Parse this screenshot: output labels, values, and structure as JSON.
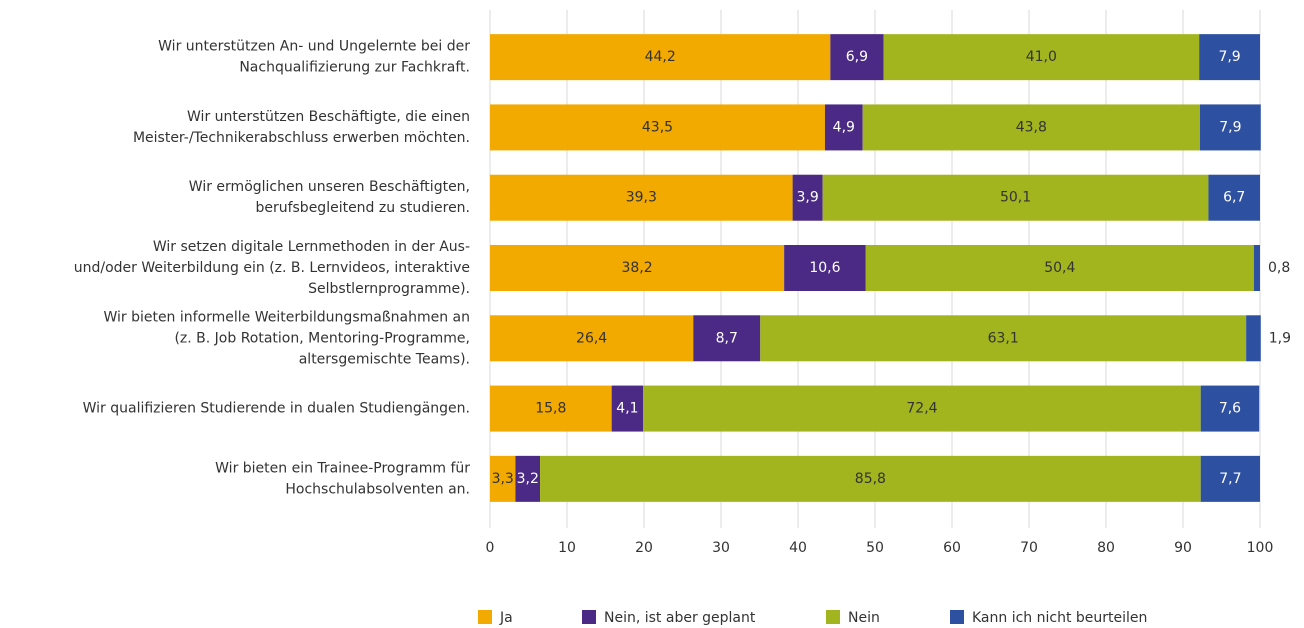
{
  "chart_data": {
    "type": "stacked-bar-horizontal",
    "categories": [
      [
        "Wir unterstützen An- und Ungelernte bei der",
        "Nachqualifizierung zur Fachkraft."
      ],
      [
        "Wir unterstützen Beschäftigte, die einen",
        "Meister-/Technikerabschluss erwerben möchten."
      ],
      [
        "Wir ermöglichen unseren Beschäftigten,",
        "berufsbegleitend zu studieren."
      ],
      [
        "Wir setzen digitale Lernmethoden in der Aus-",
        "und/oder Weiterbildung ein (z. B. Lernvideos, interaktive",
        "Selbstlernprogramme)."
      ],
      [
        "Wir bieten informelle Weiterbildungsmaßnahmen an",
        "(z. B. Job Rotation, Mentoring-Programme,",
        "altersgemischte Teams)."
      ],
      [
        "Wir qualifizieren Studierende in dualen Studiengängen."
      ],
      [
        "Wir bieten ein Trainee-Programm für",
        "Hochschulabsolventen an."
      ]
    ],
    "series": [
      {
        "name": "Ja",
        "color": "#f2a900",
        "label_color": "#333333",
        "values": [
          44.2,
          43.5,
          39.3,
          38.2,
          26.4,
          15.8,
          3.3
        ],
        "value_labels": [
          "44,2",
          "43,5",
          "39,3",
          "38,2",
          "26,4",
          "15,8",
          "3,3"
        ]
      },
      {
        "name": "Nein, ist aber geplant",
        "color": "#4b2a86",
        "label_color": "#ffffff",
        "values": [
          6.9,
          4.9,
          3.9,
          10.6,
          8.7,
          4.1,
          3.2
        ],
        "value_labels": [
          "6,9",
          "4,9",
          "3,9",
          "10,6",
          "8,7",
          "4,1",
          "3,2"
        ]
      },
      {
        "name": "Nein",
        "color": "#a2b51f",
        "label_color": "#333333",
        "values": [
          41.0,
          43.8,
          50.1,
          50.4,
          63.1,
          72.4,
          85.8
        ],
        "value_labels": [
          "41,0",
          "43,8",
          "50,1",
          "50,4",
          "63,1",
          "72,4",
          "85,8"
        ]
      },
      {
        "name": "Kann ich nicht beurteilen",
        "color": "#2d50a0",
        "label_color": "#ffffff",
        "values": [
          7.9,
          7.9,
          6.7,
          0.8,
          1.9,
          7.6,
          7.7
        ],
        "value_labels": [
          "7,9",
          "7,9",
          "6,7",
          "0,8",
          "1,9",
          "7,6",
          "7,7"
        ]
      }
    ],
    "xlim": [
      0,
      100
    ],
    "xticks": [
      0,
      10,
      20,
      30,
      40,
      50,
      60,
      70,
      80,
      90,
      100
    ],
    "grid": true
  }
}
